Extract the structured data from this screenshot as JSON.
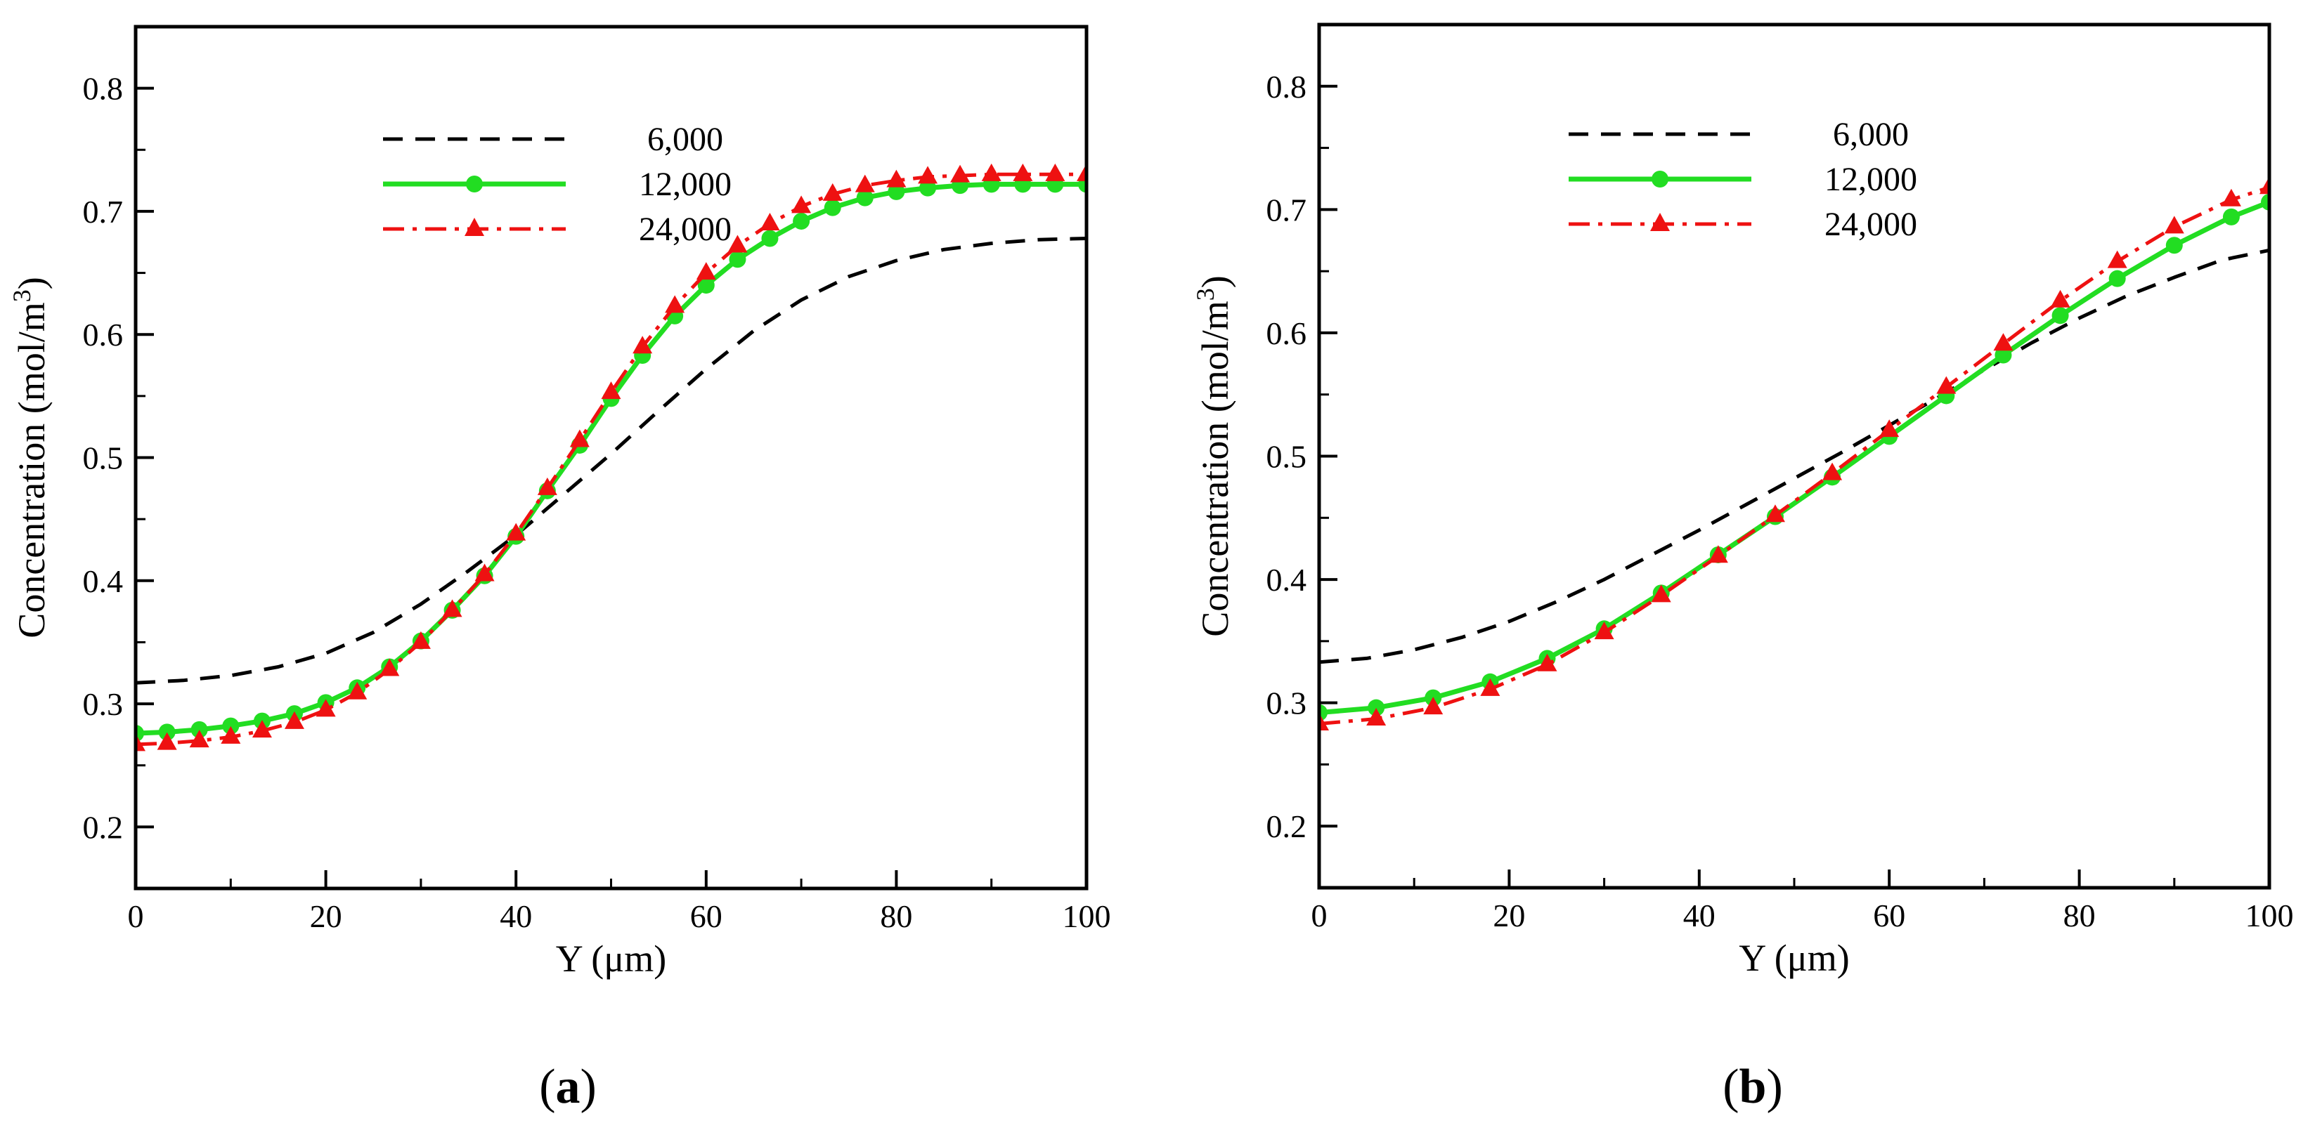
{
  "chart_data": [
    {
      "type": "line",
      "panel_label": "a",
      "xlabel": "Y (μm)",
      "ylabel": "Concentration (mol/m",
      "ylabel_sup": "3",
      "ylabel_end": ")",
      "xlim": [
        0,
        100
      ],
      "ylim": [
        0.15,
        0.85
      ],
      "xticks": [
        0,
        20,
        40,
        60,
        80,
        100
      ],
      "yticks": [
        0.2,
        0.3,
        0.4,
        0.5,
        0.6,
        0.7,
        0.8
      ],
      "xtick_labels": [
        "0",
        "20",
        "40",
        "60",
        "80",
        "100"
      ],
      "ytick_labels": [
        "0.2",
        "0.3",
        "0.4",
        "0.5",
        "0.6",
        "0.7",
        "0.8"
      ],
      "grid": false,
      "legend_position": "top-center",
      "series": [
        {
          "name": "6,000",
          "color": "#000000",
          "style": "dashed",
          "marker": "none",
          "x": [
            0,
            5,
            10,
            15,
            20,
            25,
            30,
            35,
            40,
            45,
            50,
            55,
            60,
            65,
            70,
            75,
            80,
            85,
            90,
            95,
            100
          ],
          "y": [
            0.317,
            0.319,
            0.323,
            0.33,
            0.341,
            0.358,
            0.381,
            0.408,
            0.437,
            0.47,
            0.503,
            0.538,
            0.572,
            0.603,
            0.628,
            0.647,
            0.66,
            0.669,
            0.674,
            0.677,
            0.678
          ]
        },
        {
          "name": "12,000",
          "color": "#22dd22",
          "style": "solid",
          "marker": "circle",
          "x": [
            0,
            3.3,
            6.7,
            10,
            13.3,
            16.7,
            20,
            23.3,
            26.7,
            30,
            33.3,
            36.7,
            40,
            43.3,
            46.7,
            50,
            53.3,
            56.7,
            60,
            63.3,
            66.7,
            70,
            73.3,
            76.7,
            80,
            83.3,
            86.7,
            90,
            93.3,
            96.7,
            100
          ],
          "y": [
            0.276,
            0.277,
            0.279,
            0.282,
            0.286,
            0.292,
            0.301,
            0.313,
            0.33,
            0.351,
            0.376,
            0.404,
            0.436,
            0.473,
            0.51,
            0.548,
            0.583,
            0.615,
            0.64,
            0.661,
            0.678,
            0.692,
            0.703,
            0.711,
            0.716,
            0.719,
            0.721,
            0.722,
            0.722,
            0.722,
            0.722
          ]
        },
        {
          "name": "24,000",
          "color": "#ee1111",
          "style": "dashdot",
          "marker": "triangle",
          "x": [
            0,
            3.3,
            6.7,
            10,
            13.3,
            16.7,
            20,
            23.3,
            26.7,
            30,
            33.3,
            36.7,
            40,
            43.3,
            46.7,
            50,
            53.3,
            56.7,
            60,
            63.3,
            66.7,
            70,
            73.3,
            76.7,
            80,
            83.3,
            86.7,
            90,
            93.3,
            96.7,
            100
          ],
          "y": [
            0.267,
            0.268,
            0.27,
            0.273,
            0.278,
            0.285,
            0.295,
            0.309,
            0.328,
            0.35,
            0.376,
            0.405,
            0.438,
            0.475,
            0.514,
            0.553,
            0.59,
            0.623,
            0.65,
            0.672,
            0.69,
            0.704,
            0.714,
            0.721,
            0.725,
            0.728,
            0.729,
            0.73,
            0.73,
            0.73,
            0.73
          ]
        }
      ]
    },
    {
      "type": "line",
      "panel_label": "b",
      "xlabel": "Y (μm)",
      "ylabel": "Concentration (mol/m",
      "ylabel_sup": "3",
      "ylabel_end": ")",
      "xlim": [
        0,
        100
      ],
      "ylim": [
        0.15,
        0.85
      ],
      "xticks": [
        0,
        20,
        40,
        60,
        80,
        100
      ],
      "yticks": [
        0.2,
        0.3,
        0.4,
        0.5,
        0.6,
        0.7,
        0.8
      ],
      "xtick_labels": [
        "0",
        "20",
        "40",
        "60",
        "80",
        "100"
      ],
      "ytick_labels": [
        "0.2",
        "0.3",
        "0.4",
        "0.5",
        "0.6",
        "0.7",
        "0.8"
      ],
      "grid": false,
      "legend_position": "top-center",
      "series": [
        {
          "name": "6,000",
          "color": "#000000",
          "style": "dashed",
          "marker": "none",
          "x": [
            0,
            5,
            10,
            15,
            20,
            25,
            30,
            35,
            40,
            45,
            50,
            55,
            60,
            65,
            70,
            75,
            80,
            85,
            90,
            95,
            100
          ],
          "y": [
            0.333,
            0.336,
            0.343,
            0.353,
            0.366,
            0.382,
            0.4,
            0.42,
            0.44,
            0.461,
            0.482,
            0.503,
            0.525,
            0.547,
            0.57,
            0.592,
            0.612,
            0.63,
            0.645,
            0.659,
            0.667
          ]
        },
        {
          "name": "12,000",
          "color": "#22dd22",
          "style": "solid",
          "marker": "circle",
          "x": [
            0,
            6,
            12,
            18,
            24,
            30,
            36,
            42,
            48,
            54,
            60,
            66,
            72,
            78,
            84,
            90,
            96,
            100
          ],
          "y": [
            0.292,
            0.296,
            0.304,
            0.317,
            0.336,
            0.36,
            0.389,
            0.42,
            0.451,
            0.483,
            0.516,
            0.549,
            0.582,
            0.614,
            0.644,
            0.671,
            0.694,
            0.706
          ]
        },
        {
          "name": "24,000",
          "color": "#ee1111",
          "style": "dashdot",
          "marker": "triangle",
          "x": [
            0,
            6,
            12,
            18,
            24,
            30,
            36,
            42,
            48,
            54,
            60,
            66,
            72,
            78,
            84,
            90,
            96,
            100
          ],
          "y": [
            0.283,
            0.287,
            0.296,
            0.311,
            0.331,
            0.357,
            0.387,
            0.419,
            0.452,
            0.486,
            0.521,
            0.556,
            0.591,
            0.626,
            0.658,
            0.686,
            0.708,
            0.718
          ]
        }
      ]
    }
  ]
}
